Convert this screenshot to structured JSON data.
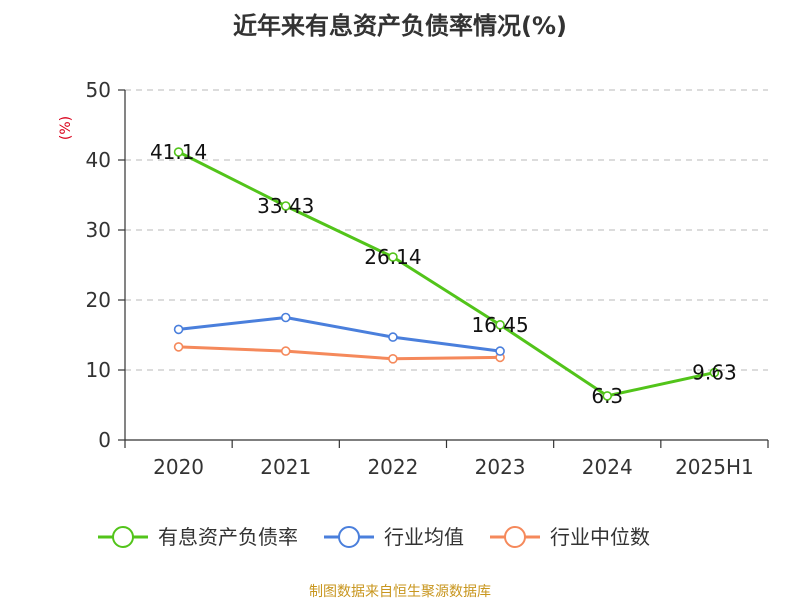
{
  "chart_data": {
    "type": "line",
    "title": "近年来有息资产负债率情况(%)",
    "ylabel": "(%)",
    "xlabel": "",
    "categories": [
      "2020",
      "2021",
      "2022",
      "2023",
      "2024",
      "2025H1"
    ],
    "ylim": [
      0,
      50
    ],
    "yticks": [
      0,
      10,
      20,
      30,
      40,
      50
    ],
    "grid": true,
    "legend_position": "bottom",
    "series": [
      {
        "name": "有息资产负债率",
        "color": "#52c41a",
        "values": [
          41.14,
          33.43,
          26.14,
          16.45,
          6.3,
          9.63
        ],
        "labels": [
          "41.14",
          "33.43",
          "26.14",
          "16.45",
          "6.3",
          "9.63"
        ]
      },
      {
        "name": "行业均值",
        "color": "#4a7fdc",
        "values": [
          15.8,
          17.5,
          14.7,
          12.7,
          null,
          null
        ]
      },
      {
        "name": "行业中位数",
        "color": "#f5895b",
        "values": [
          13.3,
          12.7,
          11.6,
          11.8,
          null,
          null
        ]
      }
    ]
  },
  "source_text": "制图数据来自恒生聚源数据库"
}
